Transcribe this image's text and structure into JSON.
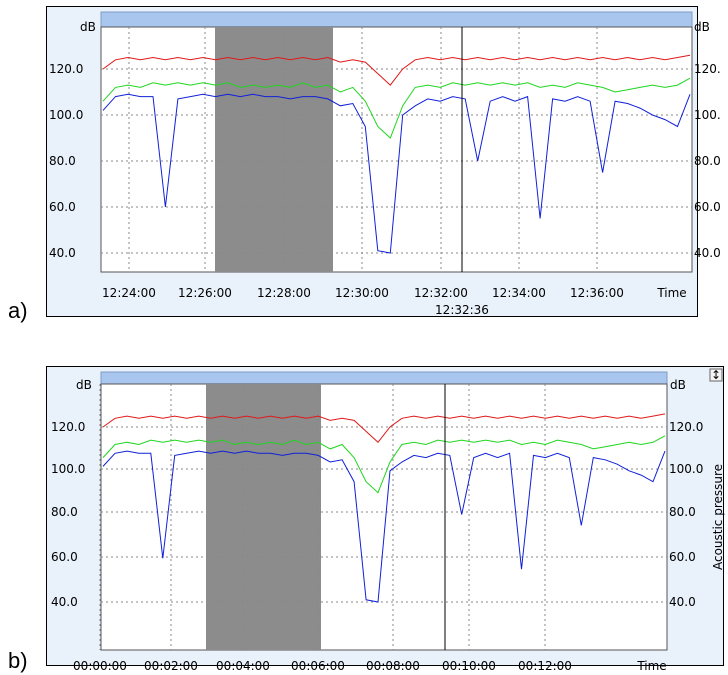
{
  "panels": [
    {
      "label": "a)",
      "cursor_time": "12:32:36",
      "right_axis_label": "",
      "has_scroll_button": false
    },
    {
      "label": "b)",
      "cursor_time": "00:09:10.000",
      "right_axis_label": "Acoustic pressure",
      "has_scroll_button": true
    }
  ],
  "colors": {
    "red": "#e01818",
    "green": "#1fd61f",
    "blue": "#1020d8",
    "gray_band": "#8c8c8c",
    "header_bar": "#a9c6ee",
    "frame_bg": "#e9f1fb"
  },
  "chart_data": [
    {
      "type": "line",
      "ylabel": "dB",
      "y_right_label": "",
      "ylim": [
        30,
        135
      ],
      "y_ticks": [
        "120.0",
        "100.0",
        "80.0",
        "60.0",
        "40.0"
      ],
      "y_ticks_right": [
        "120.",
        "100.",
        "80.0",
        "60.0",
        "40.0"
      ],
      "x_ticks": [
        "12:24:00",
        "12:26:00",
        "12:28:00",
        "12:30:00",
        "12:32:00",
        "12:34:00",
        "12:36:00"
      ],
      "x_label": "Time",
      "cursor": "12:32:36",
      "highlight": [
        "12:26:20",
        "12:29:20"
      ],
      "grid": true,
      "series": [
        {
          "color": "red",
          "values": [
            120,
            124,
            125,
            124,
            125,
            124,
            125,
            124,
            125,
            124,
            125,
            124,
            125,
            124,
            125,
            124,
            125,
            124,
            125,
            123,
            124,
            123,
            118,
            113,
            120,
            124,
            125,
            124,
            125,
            124,
            125,
            124,
            125,
            124,
            125,
            124,
            125,
            124,
            125,
            124,
            125,
            124,
            125,
            124,
            125,
            124,
            125,
            126
          ]
        },
        {
          "color": "green",
          "values": [
            106,
            112,
            113,
            112,
            114,
            113,
            114,
            113,
            114,
            113,
            114,
            112,
            113,
            112,
            113,
            112,
            114,
            112,
            113,
            110,
            112,
            106,
            95,
            90,
            104,
            112,
            113,
            112,
            114,
            113,
            114,
            113,
            114,
            113,
            114,
            112,
            113,
            112,
            114,
            113,
            112,
            110,
            111,
            112,
            113,
            112,
            113,
            116
          ]
        },
        {
          "color": "blue",
          "values": [
            102,
            108,
            109,
            108,
            108,
            60,
            107,
            108,
            109,
            108,
            109,
            108,
            109,
            108,
            108,
            107,
            108,
            108,
            107,
            104,
            105,
            95,
            41,
            40,
            100,
            104,
            107,
            106,
            108,
            107,
            80,
            106,
            108,
            106,
            108,
            55,
            107,
            106,
            108,
            106,
            75,
            106,
            105,
            103,
            100,
            98,
            95,
            109
          ]
        }
      ]
    },
    {
      "type": "line",
      "ylabel": "dB",
      "y_right_label": "Acoustic pressure",
      "ylim": [
        30,
        135
      ],
      "y_ticks": [
        "120.0",
        "100.0",
        "80.0",
        "60.0",
        "40.0"
      ],
      "y_ticks_right": [
        "120.0",
        "100.0",
        "80.0",
        "60.0",
        "40.0"
      ],
      "x_ticks": [
        "00:00:00",
        "00:02:00",
        "00:04:00",
        "00:06:00",
        "00:08:00",
        "00:10:00",
        "00:12:00"
      ],
      "x_label": "Time",
      "cursor": "00:09:10.000",
      "highlight": [
        "00:03:00",
        "00:06:00"
      ],
      "grid": true,
      "series": [
        {
          "color": "red",
          "values": [
            120,
            124,
            125,
            124,
            125,
            124,
            125,
            124,
            125,
            124,
            125,
            124,
            125,
            124,
            125,
            124,
            125,
            124,
            125,
            123,
            124,
            123,
            118,
            113,
            120,
            124,
            125,
            124,
            125,
            124,
            125,
            124,
            125,
            124,
            125,
            124,
            125,
            124,
            125,
            124,
            125,
            124,
            125,
            124,
            125,
            124,
            125,
            126
          ]
        },
        {
          "color": "green",
          "values": [
            106,
            112,
            113,
            112,
            114,
            113,
            114,
            113,
            114,
            113,
            114,
            112,
            113,
            112,
            113,
            112,
            114,
            112,
            113,
            110,
            112,
            106,
            95,
            90,
            104,
            112,
            113,
            112,
            114,
            113,
            114,
            113,
            114,
            113,
            114,
            112,
            113,
            112,
            114,
            113,
            112,
            110,
            111,
            112,
            113,
            112,
            113,
            116
          ]
        },
        {
          "color": "blue",
          "values": [
            102,
            108,
            109,
            108,
            108,
            60,
            107,
            108,
            109,
            108,
            109,
            108,
            109,
            108,
            108,
            107,
            108,
            108,
            107,
            104,
            105,
            95,
            41,
            40,
            100,
            104,
            107,
            106,
            108,
            107,
            80,
            106,
            108,
            106,
            108,
            55,
            107,
            106,
            108,
            106,
            75,
            106,
            105,
            103,
            100,
            98,
            95,
            109
          ]
        }
      ]
    }
  ]
}
